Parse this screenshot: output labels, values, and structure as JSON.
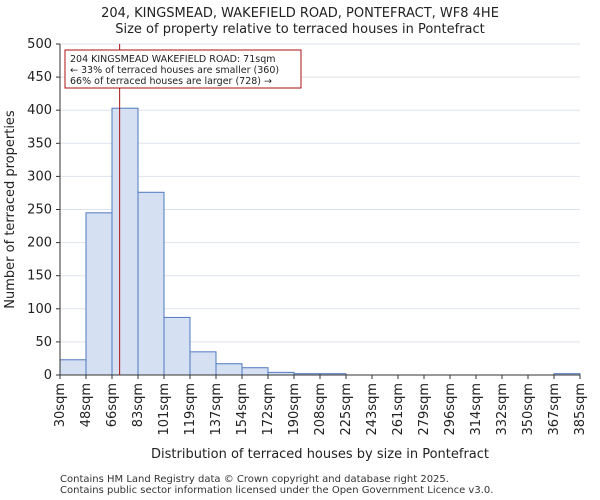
{
  "chart_data": {
    "type": "bar",
    "title": "204, KINGSMEAD, WAKEFIELD ROAD, PONTEFRACT, WF8 4HE",
    "subtitle": "Size of property relative to terraced houses in Pontefract",
    "xlabel": "Distribution of terraced houses by size in Pontefract",
    "ylabel": "Number of terraced properties",
    "ylim": [
      0,
      500
    ],
    "yticks": [
      0,
      50,
      100,
      150,
      200,
      250,
      300,
      350,
      400,
      450,
      500
    ],
    "bin_edges": [
      30,
      48,
      66,
      83,
      101,
      119,
      137,
      154,
      172,
      190,
      208,
      225,
      243,
      261,
      279,
      296,
      314,
      332,
      350,
      367,
      385
    ],
    "tick_labels": [
      "30sqm",
      "48sqm",
      "66sqm",
      "83sqm",
      "101sqm",
      "119sqm",
      "137sqm",
      "154sqm",
      "172sqm",
      "190sqm",
      "208sqm",
      "225sqm",
      "243sqm",
      "261sqm",
      "279sqm",
      "296sqm",
      "314sqm",
      "332sqm",
      "350sqm",
      "367sqm",
      "385sqm"
    ],
    "values": [
      23,
      245,
      403,
      276,
      87,
      35,
      17,
      11,
      4,
      2,
      2,
      0,
      0,
      0,
      0,
      0,
      0,
      0,
      0,
      2
    ],
    "marker": {
      "value_sqm": 71,
      "color": "#aa1111"
    },
    "annotation": {
      "lines": [
        "204 KINGSMEAD WAKEFIELD ROAD: 71sqm",
        "← 33% of terraced houses are smaller (360)",
        "66% of terraced houses are larger (728) →"
      ],
      "position": "top-left"
    },
    "colors": {
      "bar_fill": "#d6e0f3",
      "bar_edge": "#4f79bf",
      "grid": "#dde3ee",
      "annotation_border": "#aa1111"
    }
  },
  "footer": {
    "line1": "Contains HM Land Registry data © Crown copyright and database right 2025.",
    "line2": "Contains public sector information licensed under the Open Government Licence v3.0."
  }
}
